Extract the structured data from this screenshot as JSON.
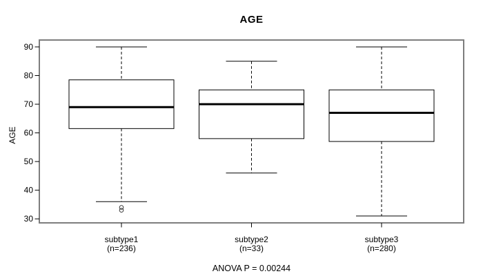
{
  "chart_data": {
    "type": "boxplot",
    "title": "AGE",
    "ylabel": "AGE",
    "xlabel": "",
    "annotation": "ANOVA P = 0.00244",
    "ylim": [
      28.6,
      92.4
    ],
    "yticks": [
      30,
      40,
      50,
      60,
      70,
      80,
      90
    ],
    "grid": false,
    "legend": "none",
    "groups": [
      {
        "label": "subtype1",
        "sublabel": "(n=236)",
        "n": 236,
        "whisker_low": 36,
        "q1": 61.5,
        "median": 69,
        "q3": 78.5,
        "whisker_high": 90,
        "outliers": [
          34,
          33
        ]
      },
      {
        "label": "subtype2",
        "sublabel": "(n=33)",
        "n": 33,
        "whisker_low": 46,
        "q1": 58,
        "median": 70,
        "q3": 75,
        "whisker_high": 85,
        "outliers": []
      },
      {
        "label": "subtype3",
        "sublabel": "(n=280)",
        "n": 280,
        "whisker_low": 31,
        "q1": 57,
        "median": 67,
        "q3": 75,
        "whisker_high": 90,
        "outliers": []
      }
    ],
    "colors": {
      "frame": "#7d7d7d",
      "box_border": "#000000",
      "median": "#000000",
      "whisker": "#000000",
      "outlier": "#3a3a3a",
      "text": "#000000",
      "background": "#ffffff"
    }
  }
}
